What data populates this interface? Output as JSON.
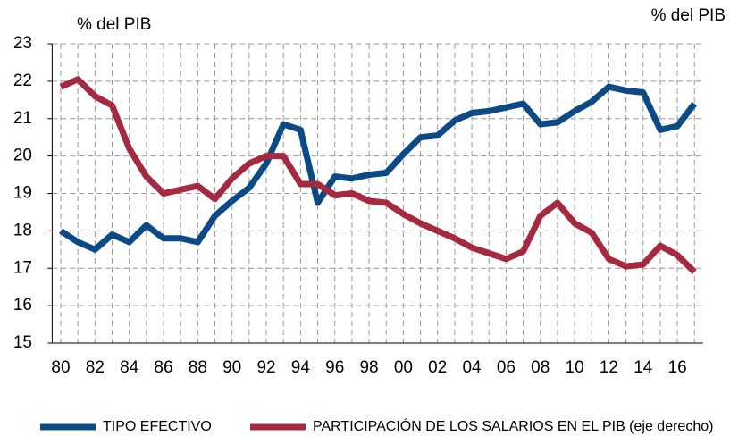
{
  "chart_data": {
    "type": "line",
    "y_label": "% del PIB",
    "y2_label": "% del PIB",
    "categories": [
      "80",
      null,
      "82",
      null,
      "84",
      null,
      "86",
      null,
      "88",
      null,
      "90",
      null,
      "92",
      null,
      "94",
      null,
      "96",
      null,
      "98",
      null,
      "00",
      null,
      "02",
      null,
      "04",
      null,
      "06",
      null,
      "08",
      null,
      "10",
      null,
      "12",
      null,
      "14",
      null,
      "16",
      null
    ],
    "series": [
      {
        "name": "TIPO EFECTIVO",
        "color": "#0b4a85",
        "values": [
          18.0,
          17.7,
          17.5,
          17.9,
          17.7,
          18.15,
          17.8,
          17.8,
          17.7,
          18.4,
          18.8,
          19.15,
          19.8,
          20.85,
          20.7,
          18.75,
          19.45,
          19.4,
          19.5,
          19.55,
          20.05,
          20.5,
          20.55,
          20.95,
          21.15,
          21.2,
          21.3,
          21.4,
          20.85,
          20.9,
          21.2,
          21.45,
          21.85,
          21.75,
          21.7,
          20.7,
          20.8,
          21.4
        ]
      },
      {
        "name": "PARTICIPACIÓN DE LOS SALARIOS EN EL PIB (eje derecho)",
        "color": "#a52a3f",
        "values": [
          21.85,
          22.05,
          21.6,
          21.35,
          20.2,
          19.45,
          19.0,
          19.1,
          19.2,
          18.85,
          19.4,
          19.8,
          20.0,
          20.0,
          19.25,
          19.25,
          18.95,
          19.0,
          18.8,
          18.75,
          18.45,
          18.2,
          18.0,
          17.8,
          17.55,
          17.4,
          17.25,
          17.45,
          18.4,
          18.75,
          18.2,
          17.95,
          17.25,
          17.05,
          17.1,
          17.6,
          17.35,
          16.9
        ]
      }
    ],
    "ylim": [
      15,
      23
    ],
    "yticks": [
      15,
      16,
      17,
      18,
      19,
      20,
      21,
      22,
      23
    ],
    "grid": true
  }
}
